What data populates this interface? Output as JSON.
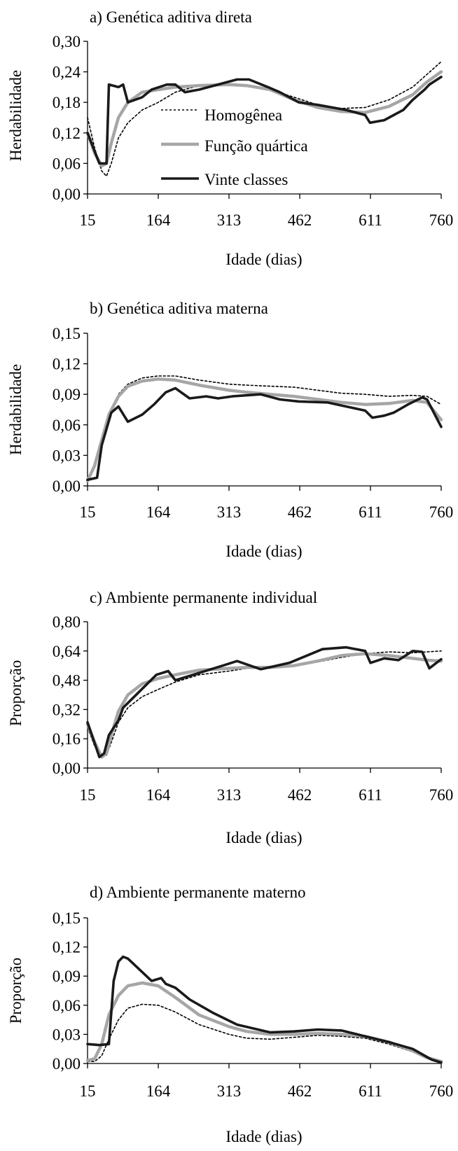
{
  "colors": {
    "homogenea": "#000000",
    "quartica": "#a6a6a6",
    "vinte": "#1a1a1a"
  },
  "legend": {
    "items": [
      {
        "key": "homogenea",
        "label": "Homogênea",
        "style": "dotted"
      },
      {
        "key": "quartica",
        "label": "Função quártica",
        "style": "gray"
      },
      {
        "key": "vinte",
        "label": "Vinte classes",
        "style": "black"
      }
    ]
  },
  "chart_data": [
    {
      "type": "line",
      "title": "a) Genética aditiva direta",
      "xlabel": "Idade (dias)",
      "ylabel": "Herdabilidade",
      "xticks": [
        "15",
        "164",
        "313",
        "462",
        "611",
        "760"
      ],
      "yticks": [
        "0,00",
        "0,06",
        "0,12",
        "0,18",
        "0,24",
        "0,30"
      ],
      "xlim": [
        15,
        760
      ],
      "ylim": [
        0,
        0.3
      ],
      "series": [
        {
          "key": "homogenea",
          "x": [
            15,
            30,
            45,
            55,
            65,
            80,
            100,
            130,
            164,
            200,
            250,
            313,
            350,
            400,
            450,
            500,
            550,
            600,
            650,
            700,
            730,
            760
          ],
          "y": [
            0.15,
            0.09,
            0.045,
            0.035,
            0.06,
            0.11,
            0.14,
            0.165,
            0.18,
            0.2,
            0.213,
            0.215,
            0.213,
            0.205,
            0.19,
            0.175,
            0.168,
            0.17,
            0.185,
            0.21,
            0.235,
            0.26
          ]
        },
        {
          "key": "quartica",
          "x": [
            15,
            30,
            45,
            55,
            65,
            80,
            100,
            130,
            164,
            200,
            250,
            313,
            350,
            400,
            450,
            500,
            550,
            600,
            650,
            700,
            730,
            760
          ],
          "y": [
            0.12,
            0.08,
            0.055,
            0.06,
            0.1,
            0.15,
            0.18,
            0.2,
            0.205,
            0.21,
            0.213,
            0.215,
            0.213,
            0.205,
            0.185,
            0.17,
            0.162,
            0.16,
            0.172,
            0.195,
            0.22,
            0.24
          ]
        },
        {
          "key": "vinte",
          "x": [
            15,
            40,
            40,
            55,
            55,
            60,
            60,
            80,
            80,
            90,
            90,
            100,
            100,
            130,
            130,
            150,
            150,
            182,
            182,
            200,
            200,
            220,
            220,
            250,
            250,
            290,
            290,
            330,
            330,
            355,
            355,
            395,
            395,
            420,
            420,
            440,
            440,
            460,
            460,
            500,
            500,
            560,
            560,
            600,
            600,
            610,
            610,
            640,
            640,
            660,
            660,
            680,
            680,
            700,
            700,
            725,
            725,
            735,
            735,
            760
          ],
          "y": [
            0.12,
            0.06,
            0.06,
            0.06,
            0.06,
            0.215,
            0.215,
            0.21,
            0.21,
            0.215,
            0.215,
            0.18,
            0.18,
            0.19,
            0.19,
            0.205,
            0.205,
            0.215,
            0.215,
            0.215,
            0.215,
            0.2,
            0.2,
            0.205,
            0.205,
            0.215,
            0.215,
            0.225,
            0.225,
            0.225,
            0.225,
            0.21,
            0.21,
            0.2,
            0.2,
            0.19,
            0.19,
            0.18,
            0.18,
            0.175,
            0.175,
            0.165,
            0.165,
            0.155,
            0.155,
            0.14,
            0.14,
            0.145,
            0.145,
            0.155,
            0.155,
            0.165,
            0.165,
            0.185,
            0.185,
            0.205,
            0.205,
            0.215,
            0.215,
            0.23
          ]
        }
      ]
    },
    {
      "type": "line",
      "title": "b) Genética aditiva materna",
      "xlabel": "Idade (dias)",
      "ylabel": "Herdabilidade",
      "xticks": [
        "15",
        "164",
        "313",
        "462",
        "611",
        "760"
      ],
      "yticks": [
        "0,00",
        "0,03",
        "0,06",
        "0,09",
        "0,12",
        "0,15"
      ],
      "xlim": [
        15,
        760
      ],
      "ylim": [
        0,
        0.15
      ],
      "series": [
        {
          "key": "homogenea",
          "x": [
            15,
            30,
            45,
            60,
            80,
            100,
            130,
            164,
            200,
            250,
            313,
            350,
            400,
            450,
            500,
            550,
            600,
            650,
            700,
            730,
            760
          ],
          "y": [
            0.005,
            0.02,
            0.045,
            0.07,
            0.09,
            0.1,
            0.106,
            0.108,
            0.108,
            0.104,
            0.1,
            0.099,
            0.098,
            0.097,
            0.094,
            0.091,
            0.09,
            0.088,
            0.089,
            0.088,
            0.08
          ]
        },
        {
          "key": "quartica",
          "x": [
            15,
            30,
            45,
            60,
            80,
            100,
            130,
            164,
            200,
            250,
            313,
            350,
            400,
            450,
            500,
            550,
            600,
            650,
            700,
            730,
            760
          ],
          "y": [
            0.005,
            0.02,
            0.045,
            0.07,
            0.088,
            0.098,
            0.103,
            0.105,
            0.104,
            0.099,
            0.094,
            0.092,
            0.09,
            0.088,
            0.085,
            0.082,
            0.08,
            0.081,
            0.084,
            0.082,
            0.065
          ]
        },
        {
          "key": "vinte",
          "x": [
            15,
            35,
            35,
            45,
            45,
            65,
            65,
            80,
            80,
            100,
            100,
            130,
            130,
            155,
            155,
            180,
            180,
            200,
            200,
            230,
            230,
            265,
            265,
            290,
            290,
            320,
            320,
            380,
            380,
            420,
            420,
            460,
            460,
            520,
            520,
            560,
            560,
            600,
            600,
            615,
            615,
            640,
            640,
            660,
            660,
            690,
            690,
            720,
            720,
            730,
            730,
            760
          ],
          "y": [
            0.006,
            0.008,
            0.008,
            0.04,
            0.04,
            0.072,
            0.072,
            0.078,
            0.078,
            0.063,
            0.063,
            0.07,
            0.07,
            0.08,
            0.08,
            0.092,
            0.092,
            0.096,
            0.096,
            0.086,
            0.086,
            0.088,
            0.088,
            0.086,
            0.086,
            0.088,
            0.088,
            0.09,
            0.09,
            0.085,
            0.085,
            0.083,
            0.083,
            0.082,
            0.082,
            0.078,
            0.078,
            0.074,
            0.074,
            0.067,
            0.067,
            0.069,
            0.069,
            0.072,
            0.072,
            0.08,
            0.08,
            0.087,
            0.087,
            0.085,
            0.085,
            0.058
          ]
        }
      ]
    },
    {
      "type": "line",
      "title": "c) Ambiente permanente individual",
      "xlabel": "Idade (dias)",
      "ylabel": "Proporção",
      "xticks": [
        "15",
        "164",
        "313",
        "462",
        "611",
        "760"
      ],
      "yticks": [
        "0,00",
        "0,16",
        "0,32",
        "0,48",
        "0,64",
        "0,80"
      ],
      "xlim": [
        15,
        760
      ],
      "ylim": [
        0,
        0.8
      ],
      "series": [
        {
          "key": "homogenea",
          "x": [
            15,
            30,
            45,
            55,
            65,
            80,
            100,
            130,
            164,
            200,
            250,
            313,
            350,
            400,
            450,
            500,
            550,
            600,
            650,
            700,
            730,
            760
          ],
          "y": [
            0.22,
            0.12,
            0.06,
            0.07,
            0.14,
            0.25,
            0.33,
            0.39,
            0.43,
            0.47,
            0.51,
            0.53,
            0.545,
            0.55,
            0.56,
            0.58,
            0.605,
            0.625,
            0.635,
            0.63,
            0.635,
            0.64
          ]
        },
        {
          "key": "quartica",
          "x": [
            15,
            30,
            45,
            55,
            65,
            80,
            100,
            130,
            164,
            200,
            250,
            313,
            350,
            400,
            450,
            500,
            550,
            600,
            650,
            700,
            730,
            760
          ],
          "y": [
            0.24,
            0.14,
            0.06,
            0.08,
            0.18,
            0.31,
            0.4,
            0.46,
            0.49,
            0.51,
            0.535,
            0.545,
            0.55,
            0.55,
            0.56,
            0.585,
            0.615,
            0.625,
            0.615,
            0.6,
            0.59,
            0.585
          ]
        },
        {
          "key": "vinte",
          "x": [
            15,
            40,
            40,
            50,
            50,
            60,
            60,
            80,
            80,
            90,
            90,
            160,
            160,
            185,
            185,
            200,
            200,
            300,
            300,
            330,
            330,
            380,
            380,
            440,
            440,
            510,
            510,
            560,
            560,
            600,
            600,
            611,
            611,
            640,
            640,
            670,
            670,
            700,
            700,
            720,
            720,
            735,
            735,
            760
          ],
          "y": [
            0.25,
            0.06,
            0.06,
            0.08,
            0.08,
            0.18,
            0.18,
            0.26,
            0.26,
            0.33,
            0.33,
            0.51,
            0.51,
            0.53,
            0.53,
            0.48,
            0.48,
            0.56,
            0.56,
            0.585,
            0.585,
            0.54,
            0.54,
            0.575,
            0.575,
            0.65,
            0.65,
            0.66,
            0.66,
            0.64,
            0.64,
            0.575,
            0.575,
            0.6,
            0.6,
            0.59,
            0.59,
            0.64,
            0.64,
            0.635,
            0.635,
            0.545,
            0.545,
            0.595
          ]
        }
      ]
    },
    {
      "type": "line",
      "title": "d) Ambiente permanente materno",
      "xlabel": "Idade (dias)",
      "ylabel": "Proporção",
      "xticks": [
        "15",
        "164",
        "313",
        "462",
        "611",
        "760"
      ],
      "yticks": [
        "0,00",
        "0,03",
        "0,06",
        "0,09",
        "0,12",
        "0,15"
      ],
      "xlim": [
        15,
        760
      ],
      "ylim": [
        0,
        0.15
      ],
      "series": [
        {
          "key": "homogenea",
          "x": [
            15,
            30,
            45,
            60,
            80,
            100,
            130,
            164,
            200,
            250,
            313,
            350,
            400,
            450,
            500,
            550,
            600,
            650,
            700,
            730,
            760
          ],
          "y": [
            0.002,
            0.002,
            0.008,
            0.025,
            0.045,
            0.057,
            0.061,
            0.06,
            0.053,
            0.04,
            0.03,
            0.026,
            0.025,
            0.027,
            0.029,
            0.028,
            0.026,
            0.02,
            0.012,
            0.005,
            0.001
          ]
        },
        {
          "key": "quartica",
          "x": [
            15,
            30,
            45,
            60,
            80,
            100,
            130,
            164,
            200,
            250,
            313,
            350,
            400,
            450,
            500,
            550,
            600,
            650,
            700,
            730,
            760
          ],
          "y": [
            0.003,
            0.005,
            0.02,
            0.05,
            0.07,
            0.08,
            0.083,
            0.08,
            0.068,
            0.05,
            0.038,
            0.033,
            0.03,
            0.03,
            0.031,
            0.03,
            0.028,
            0.022,
            0.013,
            0.006,
            0.002
          ]
        },
        {
          "key": "vinte",
          "x": [
            15,
            40,
            40,
            60,
            60,
            70,
            70,
            80,
            80,
            90,
            90,
            100,
            100,
            150,
            150,
            170,
            170,
            180,
            180,
            200,
            200,
            230,
            230,
            280,
            280,
            330,
            330,
            400,
            400,
            450,
            450,
            500,
            500,
            550,
            550,
            600,
            600,
            650,
            650,
            700,
            700,
            740,
            740,
            760
          ],
          "y": [
            0.02,
            0.019,
            0.019,
            0.02,
            0.02,
            0.085,
            0.085,
            0.105,
            0.105,
            0.11,
            0.11,
            0.108,
            0.108,
            0.085,
            0.085,
            0.088,
            0.088,
            0.082,
            0.082,
            0.078,
            0.078,
            0.066,
            0.066,
            0.052,
            0.052,
            0.04,
            0.04,
            0.032,
            0.032,
            0.033,
            0.033,
            0.035,
            0.035,
            0.034,
            0.034,
            0.028,
            0.028,
            0.022,
            0.022,
            0.015,
            0.015,
            0.004,
            0.004,
            0.001
          ]
        }
      ]
    }
  ]
}
